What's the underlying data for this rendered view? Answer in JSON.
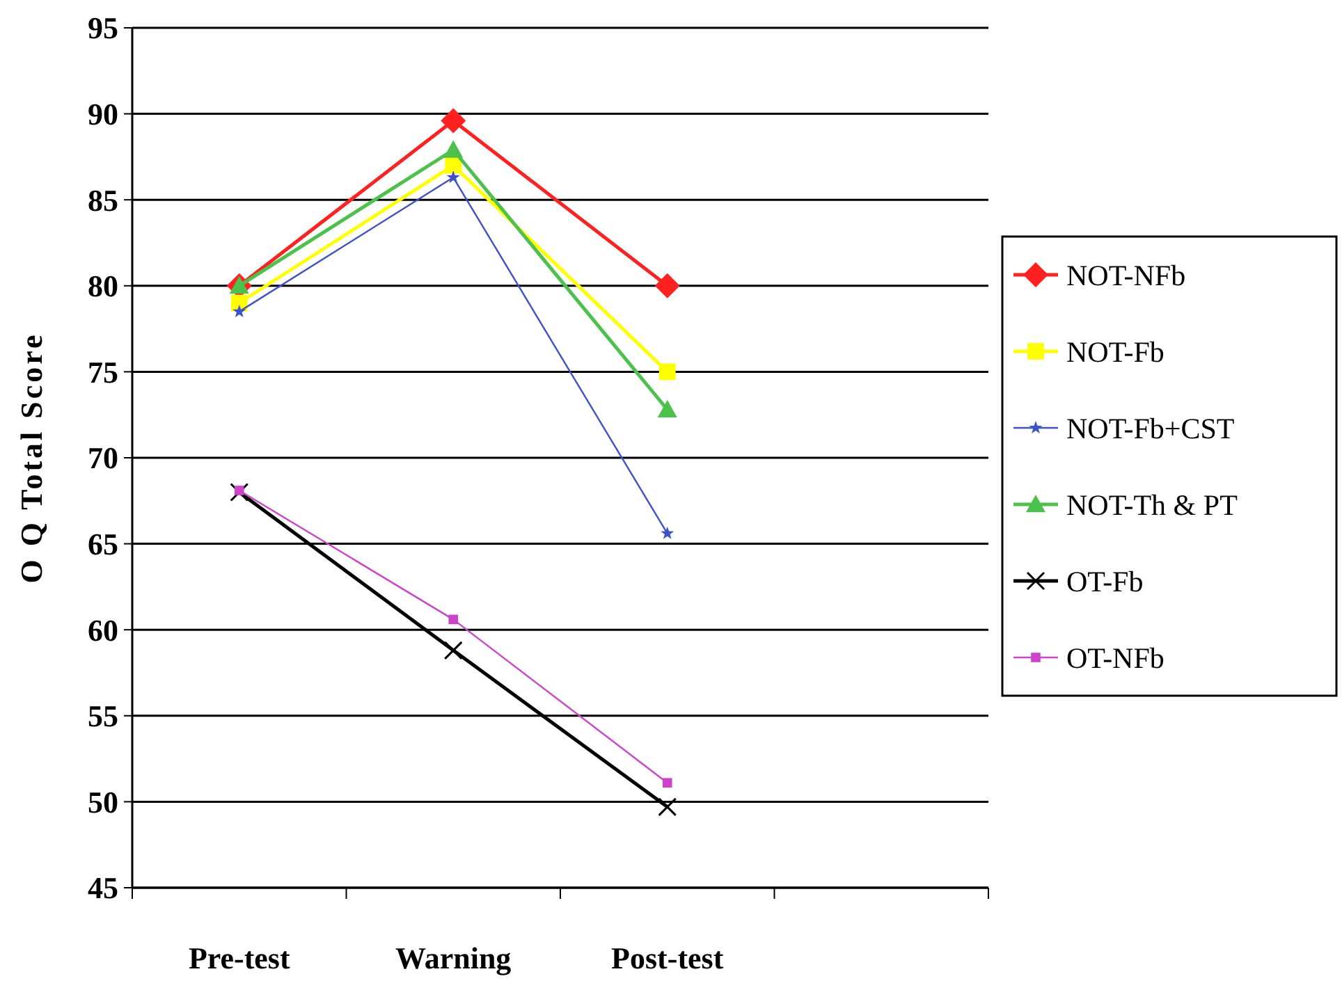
{
  "chart_data": {
    "type": "line",
    "ylabel": "O Q Total Score",
    "categories": [
      "Pre-test",
      "Warning",
      "Post-test",
      null
    ],
    "ylim": [
      45,
      95
    ],
    "yticks": [
      45,
      50,
      55,
      60,
      65,
      70,
      75,
      80,
      85,
      90,
      95
    ],
    "grid": "y",
    "legend": "right",
    "series": [
      {
        "name": "NOT-NFb",
        "color": "#ff2020",
        "marker": "diamond",
        "values": [
          80,
          89.6,
          80,
          null
        ]
      },
      {
        "name": "NOT-Fb",
        "color": "#ffff00",
        "marker": "square",
        "values": [
          79,
          87,
          75,
          null
        ]
      },
      {
        "name": "NOT-Fb+CST",
        "color": "#3f51c8",
        "marker": "star",
        "values": [
          78.5,
          86.3,
          65.6,
          null
        ]
      },
      {
        "name": "NOT-Th & PT",
        "color": "#4cc24c",
        "marker": "triangle",
        "values": [
          80,
          87.9,
          72.8,
          null
        ]
      },
      {
        "name": "OT-Fb",
        "color": "#000000",
        "marker": "cross",
        "values": [
          68,
          58.8,
          49.7,
          null
        ]
      },
      {
        "name": "OT-NFb",
        "color": "#cc44cc",
        "marker": "square",
        "values": [
          68.1,
          60.6,
          51.1,
          null
        ]
      }
    ]
  }
}
